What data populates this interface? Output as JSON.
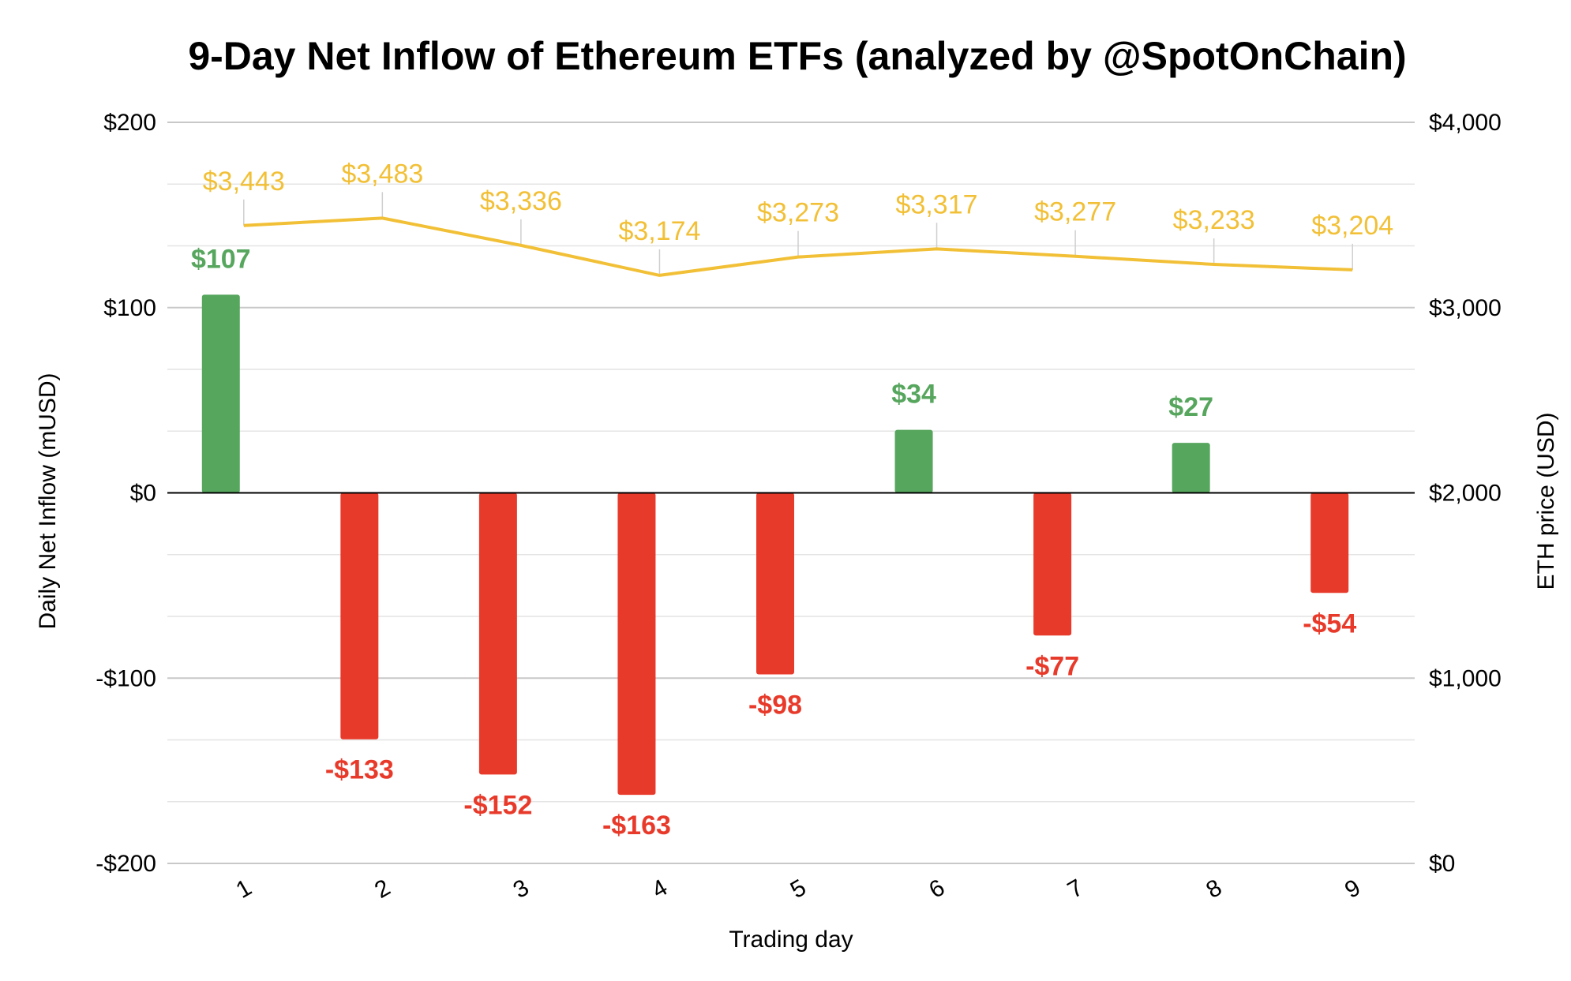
{
  "chart_data": {
    "type": "bar",
    "title": "9-Day Net Inflow of Ethereum ETFs (analyzed by @SpotOnChain)",
    "xlabel": "Trading day",
    "ylabel": "Daily Net Inflow (mUSD)",
    "y2label": "ETH price (USD)",
    "categories": [
      "1",
      "2",
      "3",
      "4",
      "5",
      "6",
      "7",
      "8",
      "9"
    ],
    "ylim": [
      -200,
      200
    ],
    "y2lim": [
      0,
      4000
    ],
    "yticks": [
      "$200",
      "$100",
      "$0",
      "-$100",
      "-$200"
    ],
    "y2ticks": [
      "$4,000",
      "$3,000",
      "$2,000",
      "$1,000",
      "$0"
    ],
    "grid": true,
    "legend": "none",
    "series": [
      {
        "type": "bar",
        "axis": "left",
        "values": [
          107,
          -133,
          -152,
          -163,
          -98,
          34,
          -77,
          27,
          -54
        ],
        "labels": [
          "$107",
          "-$133",
          "-$152",
          "-$163",
          "-$98",
          "$34",
          "-$77",
          "$27",
          "-$54"
        ]
      },
      {
        "type": "line",
        "axis": "right",
        "values": [
          3443,
          3483,
          3336,
          3174,
          3273,
          3317,
          3277,
          3233,
          3204
        ],
        "labels": [
          "$3,443",
          "$3,483",
          "$3,336",
          "$3,174",
          "$3,273",
          "$3,317",
          "$3,277",
          "$3,233",
          "$3,204"
        ]
      }
    ],
    "colors": {
      "positive": "#57a65e",
      "negative": "#e83a2a",
      "line": "#f2c037",
      "zero_line": "#000000",
      "grid": "#cfcfcf"
    }
  }
}
